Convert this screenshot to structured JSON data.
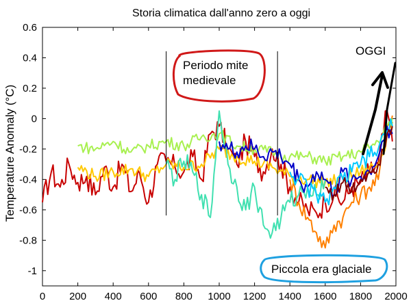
{
  "chart_data": {
    "type": "line",
    "title": "Storia climatica dall'anno zero a oggi",
    "xlabel": "",
    "ylabel": "Temperature Anomaly (°C)",
    "xlim": [
      0,
      2000
    ],
    "ylim": [
      -1.1,
      0.6
    ],
    "x_ticks": [
      0,
      200,
      400,
      600,
      800,
      1000,
      1200,
      1400,
      1600,
      1800,
      2000
    ],
    "y_ticks": [
      -1,
      -0.8,
      -0.6,
      -0.4,
      -0.2,
      0,
      0.2,
      0.4,
      0.6
    ],
    "grid": false,
    "series": [
      {
        "color": "#c80000",
        "x": [
          0,
          50,
          100,
          150,
          200,
          250,
          300,
          350,
          400,
          450,
          500,
          550,
          600,
          650,
          700,
          750,
          800,
          850,
          900,
          950,
          1000,
          1050,
          1100,
          1150,
          1200,
          1250,
          1300,
          1350,
          1400,
          1450,
          1500,
          1550,
          1600,
          1650,
          1700,
          1750,
          1800,
          1850,
          1900,
          1950,
          1980
        ],
        "y": [
          -0.55,
          -0.35,
          -0.45,
          -0.3,
          -0.42,
          -0.38,
          -0.5,
          -0.32,
          -0.45,
          -0.3,
          -0.48,
          -0.36,
          -0.55,
          -0.3,
          -0.28,
          -0.32,
          -0.35,
          -0.25,
          -0.4,
          -0.1,
          -0.05,
          -0.2,
          -0.3,
          -0.15,
          -0.25,
          -0.35,
          -0.2,
          -0.3,
          -0.45,
          -0.55,
          -0.6,
          -0.62,
          -0.55,
          -0.5,
          -0.55,
          -0.45,
          -0.42,
          -0.35,
          -0.3,
          0.05,
          -0.15
        ]
      },
      {
        "color": "#ff8000",
        "x": [
          1400,
          1450,
          1500,
          1550,
          1600,
          1650,
          1700,
          1750,
          1800,
          1850,
          1900,
          1950,
          1980
        ],
        "y": [
          -0.4,
          -0.55,
          -0.65,
          -0.75,
          -0.85,
          -0.7,
          -0.65,
          -0.55,
          -0.5,
          -0.45,
          -0.4,
          -0.05,
          0.02
        ]
      },
      {
        "color": "#ffc800",
        "x": [
          200,
          300,
          400,
          500,
          600,
          700,
          800,
          900,
          1000,
          1100,
          1200,
          1300,
          1400,
          1500,
          1600,
          1700,
          1800,
          1900,
          1980
        ],
        "y": [
          -0.32,
          -0.38,
          -0.35,
          -0.33,
          -0.38,
          -0.3,
          -0.32,
          -0.3,
          -0.2,
          -0.25,
          -0.28,
          -0.32,
          -0.38,
          -0.4,
          -0.42,
          -0.4,
          -0.35,
          -0.3,
          -0.02
        ]
      },
      {
        "color": "#a8f050",
        "x": [
          200,
          300,
          400,
          500,
          600,
          700,
          800,
          900,
          1000,
          1100,
          1200,
          1300,
          1400,
          1500,
          1600,
          1700,
          1800,
          1900,
          1980
        ],
        "y": [
          -0.18,
          -0.2,
          -0.15,
          -0.22,
          -0.18,
          -0.15,
          -0.18,
          -0.12,
          -0.1,
          -0.18,
          -0.2,
          -0.22,
          -0.25,
          -0.25,
          -0.28,
          -0.25,
          -0.22,
          -0.15,
          0.0
        ]
      },
      {
        "color": "#40e0b0",
        "x": [
          700,
          750,
          800,
          850,
          900,
          950,
          1000,
          1050,
          1100,
          1150,
          1200,
          1250,
          1300,
          1350,
          1400,
          1450,
          1500,
          1550,
          1600
        ],
        "y": [
          -0.3,
          -0.4,
          -0.28,
          -0.35,
          -0.5,
          -0.65,
          0.05,
          -0.3,
          -0.45,
          -0.6,
          -0.45,
          -0.7,
          -0.75,
          -0.65,
          -0.55,
          -0.5,
          -0.45,
          -0.5,
          -0.4
        ]
      },
      {
        "color": "#0000c8",
        "x": [
          1000,
          1050,
          1100,
          1150,
          1200,
          1250,
          1300,
          1350,
          1400,
          1450,
          1500,
          1550,
          1600,
          1650,
          1700,
          1750,
          1800,
          1850,
          1900,
          1950,
          1980
        ],
        "y": [
          -0.15,
          -0.2,
          -0.22,
          -0.18,
          -0.2,
          -0.25,
          -0.22,
          -0.25,
          -0.3,
          -0.4,
          -0.45,
          -0.35,
          -0.4,
          -0.5,
          -0.35,
          -0.4,
          -0.38,
          -0.35,
          -0.25,
          -0.05,
          -0.1
        ]
      },
      {
        "color": "#00c8ff",
        "x": [
          1400,
          1450,
          1500,
          1550,
          1600,
          1650,
          1700,
          1750,
          1800,
          1850,
          1900,
          1950,
          1980
        ],
        "y": [
          -0.35,
          -0.4,
          -0.45,
          -0.5,
          -0.55,
          -0.45,
          -0.4,
          -0.35,
          -0.3,
          -0.25,
          -0.2,
          -0.08,
          -0.05
        ]
      },
      {
        "color": "#800000",
        "x": [
          1600,
          1650,
          1700,
          1750,
          1800,
          1850,
          1900,
          1950,
          1980
        ],
        "y": [
          -0.45,
          -0.5,
          -0.42,
          -0.48,
          -0.4,
          -0.35,
          -0.3,
          -0.1,
          -0.05
        ]
      }
    ],
    "annotations": {
      "medieval_label": [
        "Periodo mite",
        "medievale"
      ],
      "little_ice_age_label": "Piccola era glaciale",
      "oggi_label": "OGGI",
      "vertical_lines_x": [
        700,
        1330
      ]
    }
  }
}
